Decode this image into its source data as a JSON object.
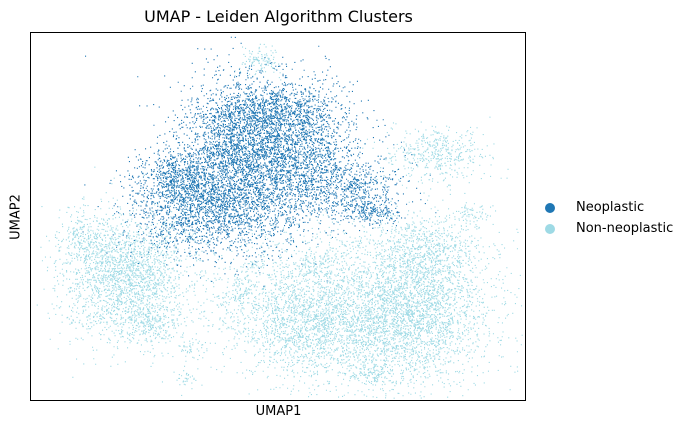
{
  "chart_data": {
    "type": "scatter",
    "title": "UMAP - Leiden Algorithm Clusters",
    "xlabel": "UMAP1",
    "ylabel": "UMAP2",
    "grid": false,
    "legend_placement": "right",
    "series": [
      {
        "name": "Neoplastic",
        "color": "#1f77b4"
      },
      {
        "name": "Non-neoplastic",
        "color": "#9edae5"
      }
    ]
  }
}
